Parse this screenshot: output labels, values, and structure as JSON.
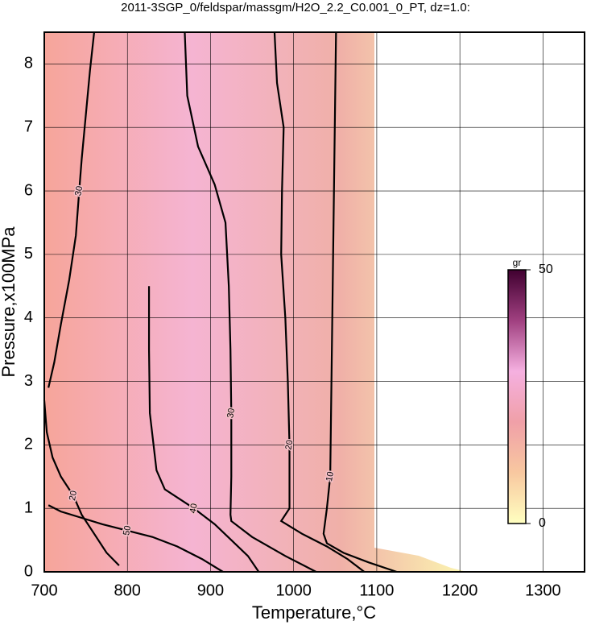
{
  "chart_data": {
    "type": "contour",
    "title": "2011-3SGP_0/feldspar/massgm/H2O_2.2_C0.001_0_PT, dz=1.0:",
    "x_label": "Temperature,°C",
    "y_label": "Pressure,x100MPa",
    "xlim": [
      700,
      1350
    ],
    "ylim": [
      0,
      8.5
    ],
    "xticks": [
      700,
      800,
      900,
      1000,
      1100,
      1200,
      1300
    ],
    "yticks": [
      0,
      1,
      2,
      3,
      4,
      5,
      6,
      7,
      8
    ],
    "grid": true,
    "contours": [
      {
        "level": 10,
        "x": [
          1051,
          1050,
          1049,
          1048,
          1047,
          1046,
          1045,
          1044,
          1040,
          1036,
          1040,
          1060,
          1090,
          1124
        ],
        "y": [
          8.5,
          7.5,
          6.5,
          5.5,
          4.5,
          3.5,
          2.5,
          1.5,
          1.0,
          0.6,
          0.45,
          0.3,
          0.15,
          0
        ]
      },
      {
        "level": 20,
        "x": [
          977,
          980,
          988,
          986,
          985,
          990,
          993,
          995,
          995,
          985,
          1010,
          1040,
          1065,
          1085
        ],
        "y": [
          8.5,
          7.7,
          7.0,
          6.0,
          5.0,
          4.0,
          3.0,
          2.0,
          1.0,
          0.8,
          0.6,
          0.4,
          0.2,
          0
        ]
      },
      {
        "level": 30,
        "x": [
          869,
          872,
          885,
          905,
          918,
          922,
          924,
          925,
          925,
          924,
          925,
          950,
          990,
          1027
        ],
        "y": [
          8.5,
          7.5,
          6.7,
          6.1,
          5.5,
          4.5,
          3.5,
          2.5,
          1.5,
          0.9,
          0.8,
          0.55,
          0.25,
          0
        ]
      },
      {
        "level": 40,
        "x": [
          826,
          826,
          827,
          835,
          845,
          880,
          905,
          925,
          945,
          958
        ],
        "y": [
          4.5,
          3.5,
          2.5,
          1.6,
          1.3,
          1.0,
          0.75,
          0.5,
          0.25,
          0
        ]
      },
      {
        "level": 50,
        "x": [
          705,
          720,
          745,
          770,
          800,
          830,
          860,
          890,
          915
        ],
        "y": [
          1.05,
          0.95,
          0.85,
          0.75,
          0.65,
          0.55,
          0.4,
          0.2,
          0
        ]
      },
      {
        "level": 30,
        "x": [
          705,
          712,
          720,
          730,
          738,
          742,
          745,
          750,
          755,
          760
        ],
        "y": [
          2.9,
          3.3,
          3.9,
          4.6,
          5.3,
          6.0,
          6.5,
          7.2,
          7.9,
          8.5
        ]
      },
      {
        "level": 20,
        "x": [
          700,
          703,
          710,
          720,
          735,
          745,
          760,
          775,
          790
        ],
        "y": [
          2.7,
          2.2,
          1.8,
          1.5,
          1.2,
          0.9,
          0.6,
          0.3,
          0.1
        ]
      }
    ],
    "colorbar": {
      "label": "gr",
      "lim": [
        0,
        50
      ],
      "ticks": [
        0,
        50
      ],
      "colors": [
        "#ffffc0",
        "#f8c8a0",
        "#f0a0a8",
        "#f5b0e0",
        "#a04080",
        "#400030"
      ]
    }
  }
}
